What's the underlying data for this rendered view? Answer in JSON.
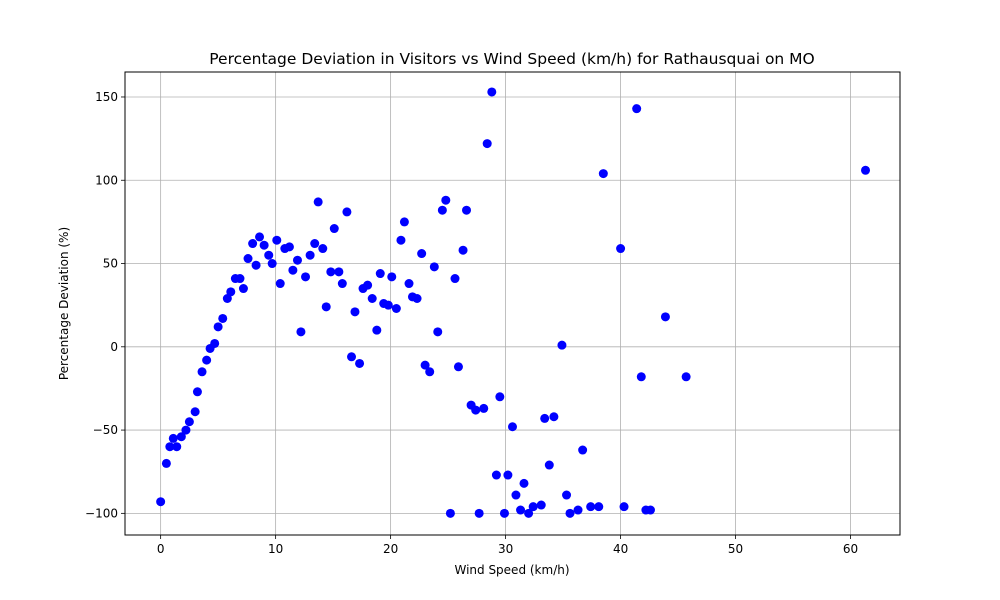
{
  "chart_data": {
    "type": "scatter",
    "title": "Percentage Deviation in Visitors vs Wind Speed (km/h) for Rathausquai on MO",
    "xlabel": "Wind Speed (km/h)",
    "ylabel": "Percentage Deviation (%)",
    "xlim": [
      -3.1,
      64.3
    ],
    "ylim": [
      -113,
      165
    ],
    "xticks": [
      0,
      10,
      20,
      30,
      40,
      50,
      60
    ],
    "yticks": [
      -100,
      -50,
      0,
      50,
      100,
      150
    ],
    "grid": true,
    "marker_color": "#0000ff",
    "points": [
      [
        0.0,
        -93
      ],
      [
        0.5,
        -70
      ],
      [
        0.8,
        -60
      ],
      [
        1.1,
        -55
      ],
      [
        1.4,
        -60
      ],
      [
        1.8,
        -54
      ],
      [
        2.2,
        -50
      ],
      [
        2.5,
        -45
      ],
      [
        3.0,
        -39
      ],
      [
        3.2,
        -27
      ],
      [
        3.6,
        -15
      ],
      [
        4.0,
        -8
      ],
      [
        4.3,
        -1
      ],
      [
        4.7,
        2
      ],
      [
        5.0,
        12
      ],
      [
        5.4,
        17
      ],
      [
        5.8,
        29
      ],
      [
        6.1,
        33
      ],
      [
        6.5,
        41
      ],
      [
        6.9,
        41
      ],
      [
        7.2,
        35
      ],
      [
        7.6,
        53
      ],
      [
        8.0,
        62
      ],
      [
        8.3,
        49
      ],
      [
        8.6,
        66
      ],
      [
        9.0,
        61
      ],
      [
        9.4,
        55
      ],
      [
        9.7,
        50
      ],
      [
        10.1,
        64
      ],
      [
        10.4,
        38
      ],
      [
        10.8,
        59
      ],
      [
        11.2,
        60
      ],
      [
        11.5,
        46
      ],
      [
        11.9,
        52
      ],
      [
        12.2,
        9
      ],
      [
        12.6,
        42
      ],
      [
        13.0,
        55
      ],
      [
        13.4,
        62
      ],
      [
        13.7,
        87
      ],
      [
        14.1,
        59
      ],
      [
        14.4,
        24
      ],
      [
        14.8,
        45
      ],
      [
        15.1,
        71
      ],
      [
        15.5,
        45
      ],
      [
        15.8,
        38
      ],
      [
        16.2,
        81
      ],
      [
        16.6,
        -6
      ],
      [
        16.9,
        21
      ],
      [
        17.3,
        -10
      ],
      [
        17.6,
        35
      ],
      [
        18.0,
        37
      ],
      [
        18.4,
        29
      ],
      [
        18.8,
        10
      ],
      [
        19.1,
        44
      ],
      [
        19.4,
        26
      ],
      [
        19.8,
        25
      ],
      [
        20.1,
        42
      ],
      [
        20.5,
        23
      ],
      [
        20.9,
        64
      ],
      [
        21.2,
        75
      ],
      [
        21.6,
        38
      ],
      [
        21.9,
        30
      ],
      [
        22.3,
        29
      ],
      [
        22.7,
        56
      ],
      [
        23.0,
        -11
      ],
      [
        23.4,
        -15
      ],
      [
        23.8,
        48
      ],
      [
        24.1,
        9
      ],
      [
        24.5,
        82
      ],
      [
        24.8,
        88
      ],
      [
        25.2,
        -100
      ],
      [
        25.6,
        41
      ],
      [
        25.9,
        -12
      ],
      [
        26.3,
        58
      ],
      [
        26.6,
        82
      ],
      [
        27.0,
        -35
      ],
      [
        27.4,
        -38
      ],
      [
        27.7,
        -100
      ],
      [
        28.1,
        -37
      ],
      [
        28.4,
        122
      ],
      [
        28.8,
        153
      ],
      [
        29.2,
        -77
      ],
      [
        29.5,
        -30
      ],
      [
        29.9,
        -100
      ],
      [
        30.2,
        -77
      ],
      [
        30.6,
        -48
      ],
      [
        30.9,
        -89
      ],
      [
        31.3,
        -98
      ],
      [
        31.6,
        -82
      ],
      [
        32.0,
        -100
      ],
      [
        32.4,
        -96
      ],
      [
        33.1,
        -95
      ],
      [
        33.4,
        -43
      ],
      [
        33.8,
        -71
      ],
      [
        34.2,
        -42
      ],
      [
        34.9,
        1
      ],
      [
        35.3,
        -89
      ],
      [
        35.6,
        -100
      ],
      [
        36.3,
        -98
      ],
      [
        36.7,
        -62
      ],
      [
        37.4,
        -96
      ],
      [
        38.1,
        -96
      ],
      [
        38.5,
        104
      ],
      [
        40.0,
        59
      ],
      [
        40.3,
        -96
      ],
      [
        41.4,
        143
      ],
      [
        41.8,
        -18
      ],
      [
        42.2,
        -98
      ],
      [
        42.6,
        -98
      ],
      [
        43.9,
        18
      ],
      [
        45.7,
        -18
      ],
      [
        61.3,
        106
      ]
    ]
  }
}
